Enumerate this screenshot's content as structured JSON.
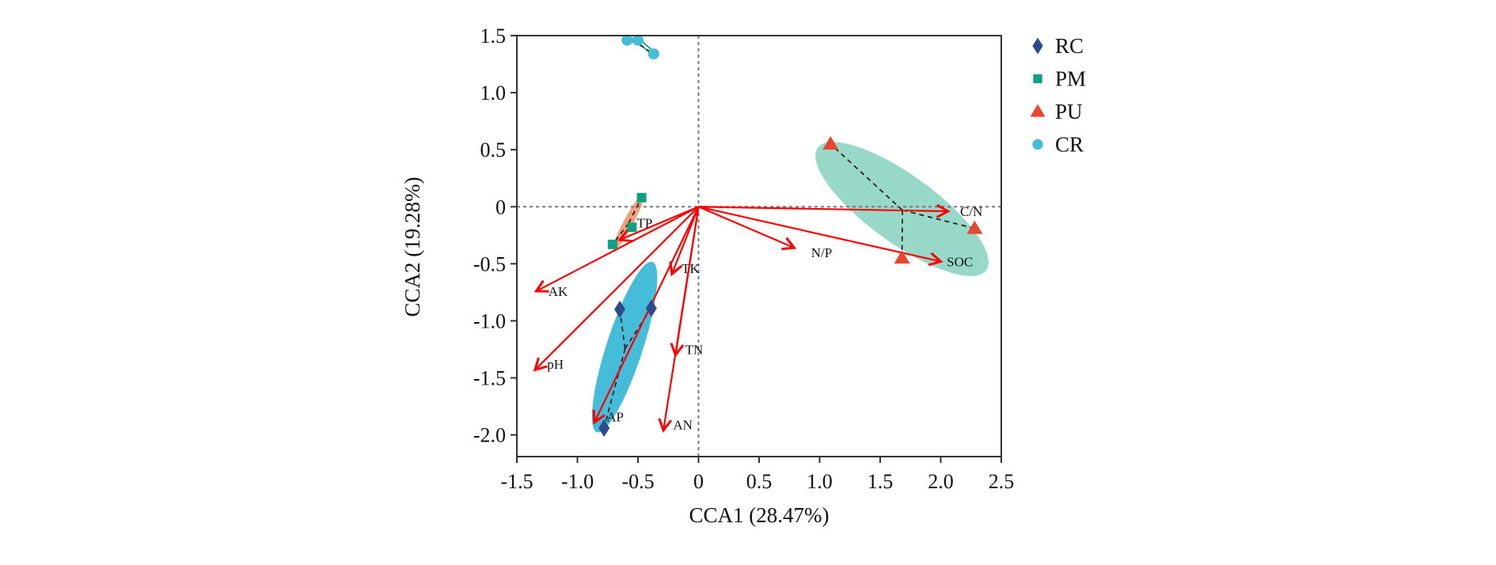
{
  "chart_data": {
    "type": "scatter",
    "title": "",
    "xlabel": "CCA1 (28.47%)",
    "ylabel": "CCA2 (19.28%)",
    "xlim": [
      -1.5,
      2.5
    ],
    "ylim": [
      -2.19,
      1.5
    ],
    "xticks": [
      -1.5,
      -1.0,
      -0.5,
      0,
      0.5,
      1.0,
      1.5,
      2.0,
      2.5
    ],
    "xtick_labels": [
      "-1.5",
      "-1.0",
      "-0.5",
      "0",
      "0.5",
      "1.0",
      "1.5",
      "2.0",
      "2.5"
    ],
    "yticks": [
      1.5,
      1.0,
      0.5,
      0,
      -0.5,
      -1.0,
      -1.5,
      -2.0
    ],
    "ytick_labels": [
      "1.5",
      "1.0",
      "0.5",
      "0",
      "-0.5",
      "-1.0",
      "-1.5",
      "-2.0"
    ],
    "zero_lines": true,
    "legend_position": "right",
    "series": [
      {
        "name": "RC",
        "marker": "diamond",
        "color": "#2e4a8b",
        "ellipse_color": "#45bcd8",
        "points": [
          [
            -0.65,
            -0.9
          ],
          [
            -0.39,
            -0.89
          ],
          [
            -0.78,
            -1.94
          ]
        ],
        "ellipse": {
          "center": [
            -0.61,
            -1.23
          ],
          "angle_deg": -72,
          "semi_major_units": 0.74,
          "semi_minor_units": 0.15
        }
      },
      {
        "name": "PM",
        "marker": "square",
        "color": "#12a083",
        "ellipse_color": "#f0a07a",
        "points": [
          [
            -0.47,
            0.08
          ],
          [
            -0.55,
            -0.18
          ],
          [
            -0.71,
            -0.33
          ]
        ],
        "ellipse": {
          "center": [
            -0.58,
            -0.14
          ],
          "angle_deg": -62,
          "semi_major_units": 0.26,
          "semi_minor_units": 0.04
        }
      },
      {
        "name": "PU",
        "marker": "triangle",
        "color": "#e8472f",
        "ellipse_color": "#97d8c8",
        "points": [
          [
            1.09,
            0.55
          ],
          [
            2.28,
            -0.19
          ],
          [
            1.68,
            -0.45
          ]
        ],
        "ellipse": {
          "center": [
            1.68,
            -0.02
          ],
          "angle_deg": 36,
          "semi_major_units": 0.86,
          "semi_minor_units": 0.28
        }
      },
      {
        "name": "CR",
        "marker": "circle",
        "color": "#45bcd8",
        "ellipse_color": "#12a083",
        "points": [
          [
            -0.59,
            1.46
          ],
          [
            -0.5,
            1.46
          ],
          [
            -0.37,
            1.34
          ]
        ],
        "ellipse": null
      }
    ],
    "vectors": [
      {
        "name": "TP",
        "x": -0.65,
        "y": -0.29,
        "label_dx": 0.14,
        "label_dy": 0.15
      },
      {
        "name": "AK",
        "x": -1.34,
        "y": -0.74,
        "label_dx": 0.1,
        "label_dy": 0.0
      },
      {
        "name": "pH",
        "x": -1.35,
        "y": -1.43,
        "label_dx": 0.1,
        "label_dy": 0.05
      },
      {
        "name": "AP",
        "x": -0.86,
        "y": -1.89,
        "label_dx": 0.1,
        "label_dy": 0.05
      },
      {
        "name": "TK",
        "x": -0.22,
        "y": -0.59,
        "label_dx": 0.08,
        "label_dy": 0.05
      },
      {
        "name": "TN",
        "x": -0.19,
        "y": -1.3,
        "label_dx": 0.08,
        "label_dy": 0.05
      },
      {
        "name": "AN",
        "x": -0.29,
        "y": -1.96,
        "label_dx": 0.08,
        "label_dy": 0.05
      },
      {
        "name": "N/P",
        "x": 0.79,
        "y": -0.36,
        "label_dx": 0.14,
        "label_dy": -0.04
      },
      {
        "name": "C/N",
        "x": 2.06,
        "y": -0.04,
        "label_dx": 0.1,
        "label_dy": 0.0
      },
      {
        "name": "SOC",
        "x": 2.0,
        "y": -0.48,
        "label_dx": 0.05,
        "label_dy": 0.0
      }
    ],
    "vector_color": "#ff0000"
  }
}
